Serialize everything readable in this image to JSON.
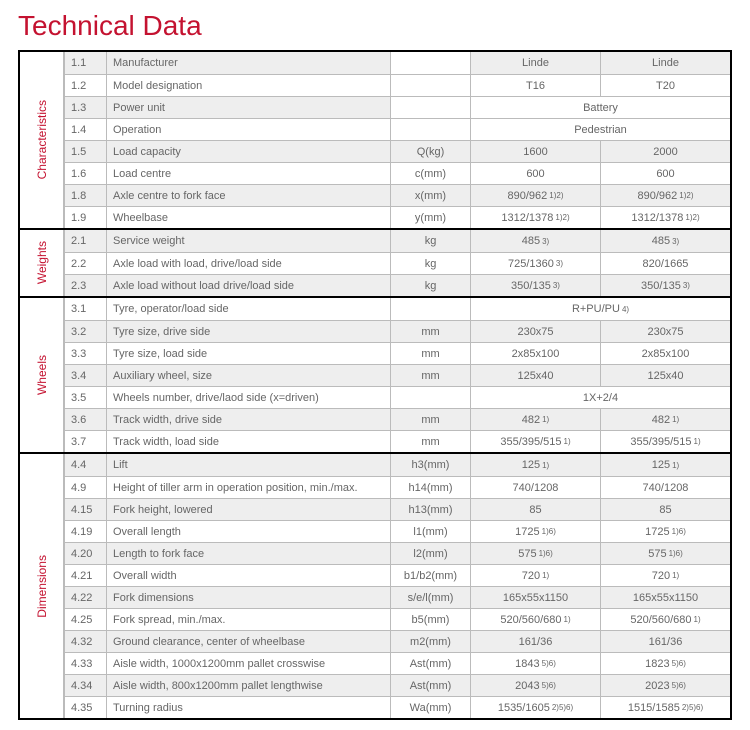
{
  "title": "Technical Data",
  "colors": {
    "accent": "#c41230",
    "border": "#bbbbbb",
    "shade": "#eeeeee",
    "frame": "#000000"
  },
  "sections": [
    {
      "category": "Characteristics",
      "rows": [
        {
          "n": "1.1",
          "d": "Manufacturer",
          "u": "",
          "v1": "Linde",
          "v2": "Linde",
          "sh": true
        },
        {
          "n": "1.2",
          "d": "Model designation",
          "u": "",
          "v1": "T16",
          "v2": "T20"
        },
        {
          "n": "1.3",
          "d": "Power unit",
          "u": "",
          "span": "Battery",
          "sh": true
        },
        {
          "n": "1.4",
          "d": "Operation",
          "u": "",
          "span": "Pedestrian"
        },
        {
          "n": "1.5",
          "d": "Load capacity",
          "u": "Q(kg)",
          "v1": "1600",
          "v2": "2000",
          "sh": true
        },
        {
          "n": "1.6",
          "d": "Load centre",
          "u": "c(mm)",
          "v1": "600",
          "v2": "600"
        },
        {
          "n": "1.8",
          "d": "Axle centre to fork face",
          "u": "x(mm)",
          "v1": "890/962",
          "s1": "1)2)",
          "v2": "890/962",
          "s2": "1)2)",
          "sh": true
        },
        {
          "n": "1.9",
          "d": "Wheelbase",
          "u": "y(mm)",
          "v1": "1312/1378",
          "s1": "1)2)",
          "v2": "1312/1378",
          "s2": "1)2)"
        }
      ]
    },
    {
      "category": "Weights",
      "rows": [
        {
          "n": "2.1",
          "d": "Service weight",
          "u": "kg",
          "v1": "485",
          "s1": "3)",
          "v2": "485",
          "s2": "3)",
          "sh": true
        },
        {
          "n": "2.2",
          "d": "Axle load with load, drive/load side",
          "u": "kg",
          "v1": "725/1360",
          "s1": "3)",
          "v2": "820/1665"
        },
        {
          "n": "2.3",
          "d": "Axle load without load drive/load side",
          "u": "kg",
          "v1": "350/135",
          "s1": "3)",
          "v2": "350/135",
          "s2": "3)",
          "sh": true
        }
      ]
    },
    {
      "category": "Wheels",
      "rows": [
        {
          "n": "3.1",
          "d": "Tyre, operator/load side",
          "u": "",
          "span": "R+PU/PU",
          "ss": "4)"
        },
        {
          "n": "3.2",
          "d": "Tyre size, drive side",
          "u": "mm",
          "v1": "230x75",
          "v2": "230x75",
          "sh": true
        },
        {
          "n": "3.3",
          "d": "Tyre size, load side",
          "u": "mm",
          "v1": "2x85x100",
          "v2": "2x85x100"
        },
        {
          "n": "3.4",
          "d": "Auxiliary wheel, size",
          "u": "mm",
          "v1": "125x40",
          "v2": "125x40",
          "sh": true
        },
        {
          "n": "3.5",
          "d": "Wheels number, drive/laod side (x=driven)",
          "u": "",
          "span": "1X+2/4"
        },
        {
          "n": "3.6",
          "d": "Track width, drive side",
          "u": "mm",
          "v1": "482",
          "s1": "1)",
          "v2": "482",
          "s2": "1)",
          "sh": true
        },
        {
          "n": "3.7",
          "d": "Track width, load side",
          "u": "mm",
          "v1": "355/395/515",
          "s1": "1)",
          "v2": "355/395/515",
          "s2": "1)"
        }
      ]
    },
    {
      "category": "Dimensions",
      "rows": [
        {
          "n": "4.4",
          "d": "Lift",
          "u": "h3(mm)",
          "v1": "125",
          "s1": "1)",
          "v2": "125",
          "s2": "1)",
          "sh": true
        },
        {
          "n": "4.9",
          "d": "Height of tiller arm in operation position, min./max.",
          "u": "h14(mm)",
          "v1": "740/1208",
          "v2": "740/1208"
        },
        {
          "n": "4.15",
          "d": "Fork height, lowered",
          "u": "h13(mm)",
          "v1": "85",
          "v2": "85",
          "sh": true
        },
        {
          "n": "4.19",
          "d": "Overall length",
          "u": "l1(mm)",
          "v1": "1725",
          "s1": "1)6)",
          "v2": "1725",
          "s2": "1)6)"
        },
        {
          "n": "4.20",
          "d": "Length to fork face",
          "u": "l2(mm)",
          "v1": "575",
          "s1": "1)6)",
          "v2": "575",
          "s2": "1)6)",
          "sh": true
        },
        {
          "n": "4.21",
          "d": "Overall width",
          "u": "b1/b2(mm)",
          "v1": "720",
          "s1": "1)",
          "v2": "720",
          "s2": "1)"
        },
        {
          "n": "4.22",
          "d": "Fork dimensions",
          "u": "s/e/l(mm)",
          "v1": "165x55x1150",
          "v2": "165x55x1150",
          "sh": true
        },
        {
          "n": "4.25",
          "d": "Fork spread, min./max.",
          "u": "b5(mm)",
          "v1": "520/560/680",
          "s1": "1)",
          "v2": "520/560/680",
          "s2": "1)"
        },
        {
          "n": "4.32",
          "d": "Ground clearance, center of wheelbase",
          "u": "m2(mm)",
          "v1": "161/36",
          "v2": "161/36",
          "sh": true
        },
        {
          "n": "4.33",
          "d": "Aisle width, 1000x1200mm pallet crosswise",
          "u": "Ast(mm)",
          "v1": "1843",
          "s1": "5)6)",
          "v2": "1823",
          "s2": "5)6)"
        },
        {
          "n": "4.34",
          "d": "Aisle width, 800x1200mm pallet lengthwise",
          "u": "Ast(mm)",
          "v1": "2043",
          "s1": "5)6)",
          "v2": "2023",
          "s2": "5)6)",
          "sh": true
        },
        {
          "n": "4.35",
          "d": "Turning radius",
          "u": "Wa(mm)",
          "v1": "1535/1605",
          "s1": "2)5)6)",
          "v2": "1515/1585",
          "s2": "2)5)6)"
        }
      ]
    }
  ]
}
